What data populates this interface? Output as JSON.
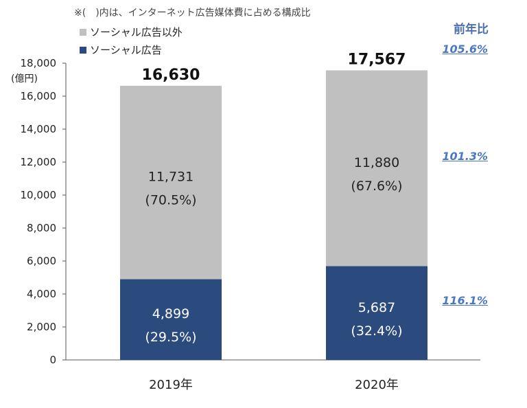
{
  "note": "※(　)内は、インターネット広告媒体費に占める構成比",
  "unit": "(億円)",
  "yoy_title": "前年比",
  "yoy": {
    "total": "105.6%",
    "other": "101.3%",
    "social": "116.1%"
  },
  "colors": {
    "social": "#2b4a7e",
    "other": "#c0c0c0",
    "yoy": "#4a78c6"
  },
  "chart_data": {
    "type": "bar",
    "stacked": true,
    "categories": [
      "2019年",
      "2020年"
    ],
    "series": [
      {
        "name": "ソーシャル広告",
        "values": [
          4899,
          5687
        ],
        "labels": [
          "4,899",
          "5,687"
        ],
        "shares": [
          "(29.5%)",
          "(32.4%)"
        ]
      },
      {
        "name": "ソーシャル広告以外",
        "values": [
          11731,
          11880
        ],
        "labels": [
          "11,731",
          "11,880"
        ],
        "shares": [
          "(70.5%)",
          "(67.6%)"
        ]
      }
    ],
    "totals": [
      "16,630",
      "17,567"
    ],
    "ylim": [
      0,
      18000
    ],
    "yticks": [
      "0",
      "2,000",
      "4,000",
      "6,000",
      "8,000",
      "10,000",
      "12,000",
      "14,000",
      "16,000",
      "18,000"
    ],
    "legend_position": "top-left"
  }
}
